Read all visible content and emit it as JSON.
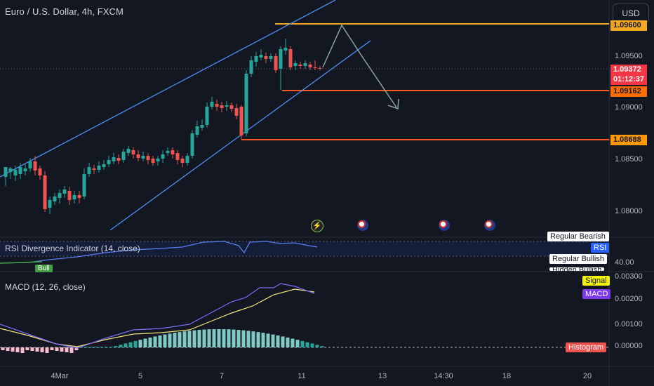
{
  "header": {
    "symbol_title": "Euro / U.S. Dollar, 4h, FXCM",
    "currency": "USD"
  },
  "price_axis": {
    "ticks": [
      "1.09500",
      "1.09000",
      "1.08500",
      "1.08000"
    ],
    "current_price": "1.09372",
    "countdown": "01:12:37",
    "levels": [
      {
        "label": "1.09600",
        "color": "#f5a623"
      },
      {
        "label": "1.09162",
        "color": "#ff5722"
      },
      {
        "label": "1.08688",
        "color": "#ff5722"
      }
    ]
  },
  "rsi_pane": {
    "title": "RSI Divergence Indicator (14, close)",
    "value_label": "40.00",
    "tags": [
      "Regular Bearish",
      "RSI",
      "Regular Bullish",
      "Hidden Bullish"
    ],
    "bull_marker": "Bull"
  },
  "macd_pane": {
    "title": "MACD (12, 26, close)",
    "axis_ticks": [
      "0.00300",
      "0.00200",
      "0.00100",
      "0.00000"
    ],
    "legend": [
      "Signal",
      "MACD",
      "Histogram"
    ]
  },
  "time_axis": {
    "labels": [
      "4Mar",
      "5",
      "7",
      "11",
      "13",
      "14:30",
      "18",
      "20"
    ]
  },
  "colors": {
    "background": "#131722",
    "bull": "#26a69a",
    "bear": "#ef5350",
    "channel": "#4c8ef0",
    "projection": "#8aa69a",
    "price_tag": "#f23645",
    "signal_line": "#f5e77a",
    "macd_line": "#7b6cf6"
  },
  "events": [
    "lightning-event-icon",
    "us-flag-event-icon",
    "us-flag-event-icon",
    "us-flag-event-icon"
  ]
}
